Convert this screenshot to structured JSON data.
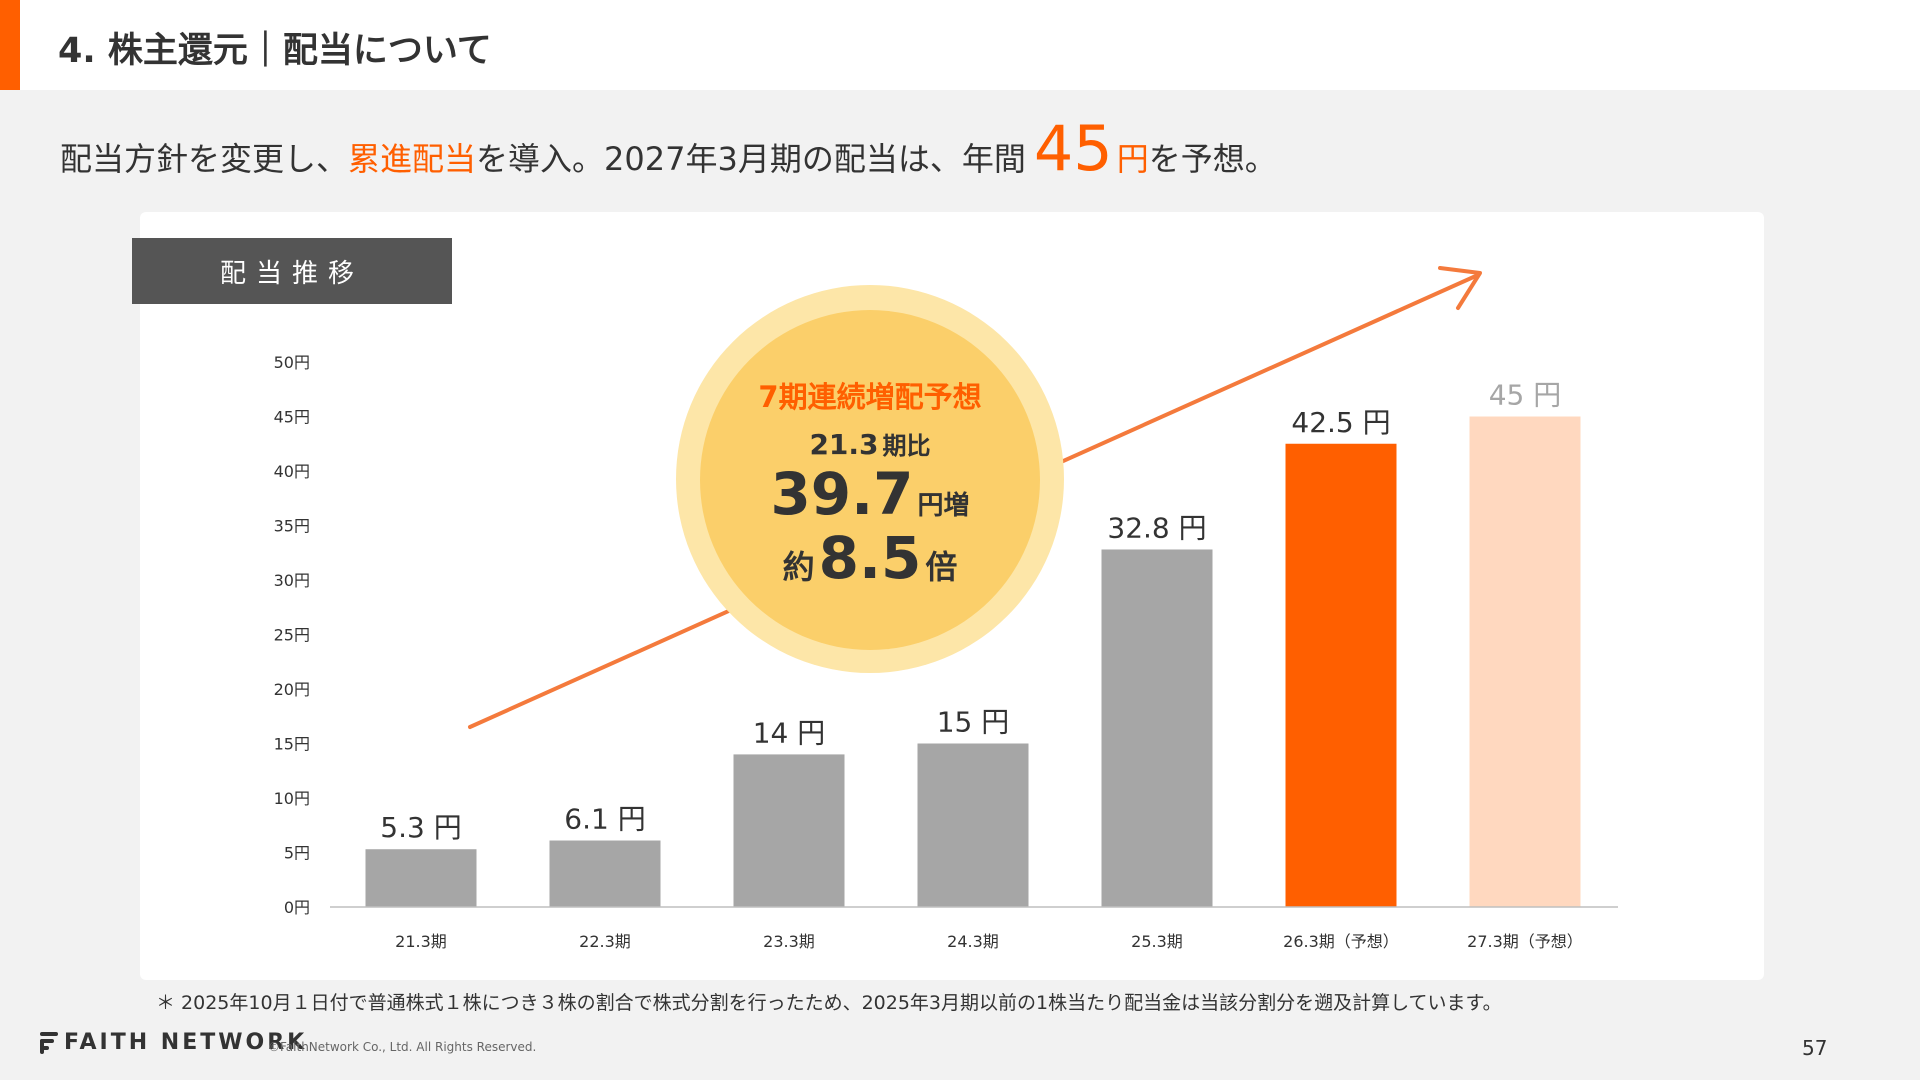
{
  "header": {
    "title": "4. 株主還元｜配当について"
  },
  "headline": {
    "part1": "配当方針を変更し、",
    "accent": "累進配当",
    "part2": "を導入。2027年3月期の配当は、年間",
    "big_number": "45",
    "unit": "円",
    "part3": "を予想。"
  },
  "section_label": "配当推移",
  "bubble": {
    "line1": "7期連続増配予想",
    "line2_num": "21.3",
    "line2_suffix": "期比",
    "line3_num": "39.7",
    "line3_suffix": "円増",
    "line4_prefix": "約",
    "line4_num": "8.5",
    "line4_suffix": "倍"
  },
  "chart_data": {
    "type": "bar",
    "categories": [
      "21.3期",
      "22.3期",
      "23.3期",
      "24.3期",
      "25.3期",
      "26.3期（予想）",
      "27.3期（予想）"
    ],
    "values": [
      5.3,
      6.1,
      14,
      15,
      32.8,
      42.5,
      45
    ],
    "data_labels": [
      "5.3 円",
      "6.1 円",
      "14 円",
      "15 円",
      "32.8 円",
      "42.5 円",
      "45 円"
    ],
    "yticks": [
      "0円",
      "5円",
      "10円",
      "15円",
      "20円",
      "25円",
      "30円",
      "35円",
      "40円",
      "45円",
      "50円"
    ],
    "ylim": [
      0,
      50
    ],
    "colors": [
      "#a6a6a6",
      "#a6a6a6",
      "#a6a6a6",
      "#a6a6a6",
      "#a6a6a6",
      "#ff5f00",
      "#ffd8bf"
    ],
    "label_colors": [
      "#333333",
      "#333333",
      "#333333",
      "#333333",
      "#333333",
      "#333333",
      "#a6a6a6"
    ],
    "grid": false
  },
  "colors": {
    "accent": "#ff5f00",
    "bar_actual": "#a6a6a6",
    "bar_forecast_current": "#ff5f00",
    "bar_forecast_next": "#ffd8bf",
    "bubble": "#fbcf6a",
    "bubble_halo": "#fde6a8"
  },
  "footnote": "＊ 2025年10月１日付で普通株式１株につき３株の割合で株式分割を行ったため、2025年3月期以前の1株当たり配当金は当該分割分を遡及計算しています。",
  "footer": {
    "logo_text": "FAITH NETWORK",
    "logo_icon": "faith-network-logo-icon",
    "copyright": "©FaithNetwork Co., Ltd. All Rights Reserved.",
    "page_number": "57"
  }
}
